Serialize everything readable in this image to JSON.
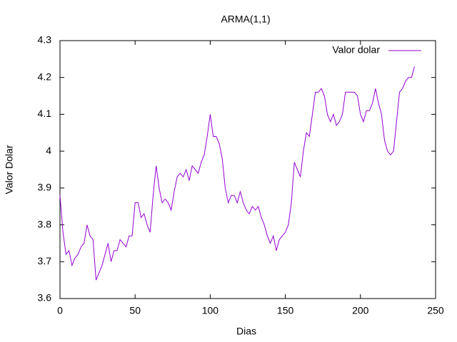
{
  "chart_data": {
    "type": "line",
    "title": "ARMA(1,1)",
    "x_label": "Dias",
    "y_label": "Valor Dolar",
    "xlim": [
      0,
      250
    ],
    "xticks": [
      0,
      50,
      100,
      150,
      200,
      250
    ],
    "ylim": [
      3.6,
      4.3
    ],
    "yticks": [
      3.6,
      3.7,
      3.8,
      3.9,
      4,
      4.1,
      4.2,
      4.3
    ],
    "legend": "top-right",
    "x": [
      0,
      2,
      4,
      6,
      8,
      10,
      12,
      14,
      16,
      18,
      20,
      22,
      24,
      26,
      28,
      30,
      32,
      34,
      36,
      38,
      40,
      42,
      44,
      46,
      48,
      50,
      52,
      54,
      56,
      58,
      60,
      62,
      64,
      66,
      68,
      70,
      72,
      74,
      76,
      78,
      80,
      82,
      84,
      86,
      88,
      90,
      92,
      94,
      96,
      98,
      100,
      102,
      104,
      106,
      108,
      110,
      112,
      114,
      116,
      118,
      120,
      122,
      124,
      126,
      128,
      130,
      132,
      134,
      136,
      138,
      140,
      142,
      144,
      146,
      148,
      150,
      152,
      154,
      156,
      158,
      160,
      162,
      164,
      166,
      168,
      170,
      172,
      174,
      176,
      178,
      180,
      182,
      184,
      186,
      188,
      190,
      192,
      194,
      196,
      198,
      200,
      202,
      204,
      206,
      208,
      210,
      212,
      214,
      216,
      218,
      220,
      222,
      224,
      226,
      228,
      230,
      232,
      234,
      236
    ],
    "series": [
      {
        "name": "Valor dolar",
        "color": "#9400d3",
        "values": [
          3.88,
          3.78,
          3.72,
          3.73,
          3.69,
          3.71,
          3.72,
          3.74,
          3.75,
          3.8,
          3.77,
          3.76,
          3.65,
          3.67,
          3.69,
          3.72,
          3.75,
          3.7,
          3.73,
          3.73,
          3.76,
          3.75,
          3.74,
          3.77,
          3.77,
          3.86,
          3.86,
          3.82,
          3.83,
          3.8,
          3.78,
          3.88,
          3.96,
          3.9,
          3.86,
          3.87,
          3.86,
          3.84,
          3.89,
          3.93,
          3.94,
          3.93,
          3.95,
          3.92,
          3.96,
          3.95,
          3.94,
          3.97,
          3.99,
          4.04,
          4.1,
          4.04,
          4.04,
          4.02,
          3.98,
          3.9,
          3.86,
          3.88,
          3.88,
          3.86,
          3.89,
          3.86,
          3.84,
          3.83,
          3.85,
          3.84,
          3.85,
          3.82,
          3.8,
          3.77,
          3.75,
          3.77,
          3.73,
          3.76,
          3.77,
          3.78,
          3.8,
          3.86,
          3.97,
          3.95,
          3.93,
          4.0,
          4.05,
          4.04,
          4.1,
          4.16,
          4.16,
          4.17,
          4.15,
          4.1,
          4.08,
          4.1,
          4.07,
          4.08,
          4.1,
          4.16,
          4.16,
          4.16,
          4.16,
          4.15,
          4.1,
          4.08,
          4.11,
          4.11,
          4.13,
          4.17,
          4.13,
          4.1,
          4.03,
          4.0,
          3.99,
          4.0,
          4.08,
          4.16,
          4.17,
          4.19,
          4.2,
          4.2,
          4.23
        ]
      }
    ]
  }
}
